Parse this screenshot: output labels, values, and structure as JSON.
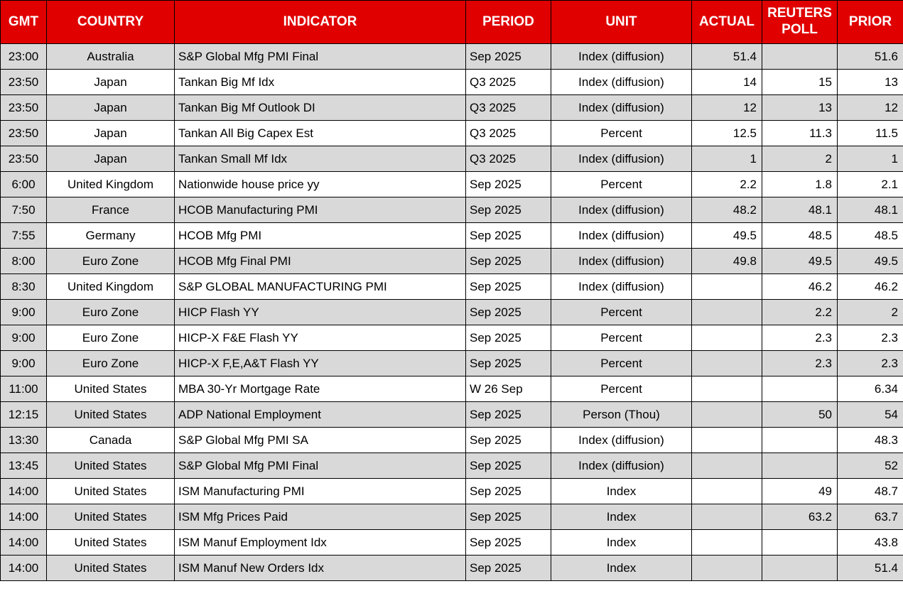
{
  "colors": {
    "header_bg": "#e00000",
    "header_text": "#ffffff",
    "stripe": "#d9d9d9",
    "row_white": "#ffffff",
    "border": "#000000"
  },
  "table": {
    "columns": [
      {
        "key": "gmt",
        "label": "GMT"
      },
      {
        "key": "country",
        "label": "COUNTRY"
      },
      {
        "key": "indicator",
        "label": "INDICATOR"
      },
      {
        "key": "period",
        "label": "PERIOD"
      },
      {
        "key": "unit",
        "label": "UNIT"
      },
      {
        "key": "actual",
        "label": "ACTUAL"
      },
      {
        "key": "poll",
        "label": "REUTERS POLL"
      },
      {
        "key": "prior",
        "label": "PRIOR"
      }
    ],
    "rows": [
      {
        "gmt": "23:00",
        "country": "Australia",
        "indicator": "S&P Global Mfg PMI Final",
        "period": "Sep 2025",
        "unit": "Index (diffusion)",
        "actual": "51.4",
        "poll": "",
        "prior": "51.6"
      },
      {
        "gmt": "23:50",
        "country": "Japan",
        "indicator": "Tankan Big Mf Idx",
        "period": "Q3 2025",
        "unit": "Index (diffusion)",
        "actual": "14",
        "poll": "15",
        "prior": "13"
      },
      {
        "gmt": "23:50",
        "country": "Japan",
        "indicator": "Tankan Big Mf Outlook DI",
        "period": "Q3 2025",
        "unit": "Index (diffusion)",
        "actual": "12",
        "poll": "13",
        "prior": "12"
      },
      {
        "gmt": "23:50",
        "country": "Japan",
        "indicator": "Tankan All Big Capex Est",
        "period": "Q3 2025",
        "unit": "Percent",
        "actual": "12.5",
        "poll": "11.3",
        "prior": "11.5"
      },
      {
        "gmt": "23:50",
        "country": "Japan",
        "indicator": "Tankan Small Mf Idx",
        "period": "Q3 2025",
        "unit": "Index (diffusion)",
        "actual": "1",
        "poll": "2",
        "prior": "1"
      },
      {
        "gmt": "6:00",
        "country": "United Kingdom",
        "indicator": "Nationwide house price yy",
        "period": "Sep 2025",
        "unit": "Percent",
        "actual": "2.2",
        "poll": "1.8",
        "prior": "2.1"
      },
      {
        "gmt": "7:50",
        "country": "France",
        "indicator": "HCOB Manufacturing PMI",
        "period": "Sep 2025",
        "unit": "Index (diffusion)",
        "actual": "48.2",
        "poll": "48.1",
        "prior": "48.1"
      },
      {
        "gmt": "7:55",
        "country": "Germany",
        "indicator": "HCOB Mfg PMI",
        "period": "Sep 2025",
        "unit": "Index (diffusion)",
        "actual": "49.5",
        "poll": "48.5",
        "prior": "48.5"
      },
      {
        "gmt": "8:00",
        "country": "Euro Zone",
        "indicator": "HCOB Mfg Final PMI",
        "period": "Sep 2025",
        "unit": "Index (diffusion)",
        "actual": "49.8",
        "poll": "49.5",
        "prior": "49.5"
      },
      {
        "gmt": "8:30",
        "country": "United Kingdom",
        "indicator": "S&P GLOBAL MANUFACTURING PMI",
        "period": "Sep 2025",
        "unit": "Index (diffusion)",
        "actual": "",
        "poll": "46.2",
        "prior": "46.2"
      },
      {
        "gmt": "9:00",
        "country": "Euro Zone",
        "indicator": "HICP Flash YY",
        "period": "Sep 2025",
        "unit": "Percent",
        "actual": "",
        "poll": "2.2",
        "prior": "2"
      },
      {
        "gmt": "9:00",
        "country": "Euro Zone",
        "indicator": "HICP-X F&E Flash YY",
        "period": "Sep 2025",
        "unit": "Percent",
        "actual": "",
        "poll": "2.3",
        "prior": "2.3"
      },
      {
        "gmt": "9:00",
        "country": "Euro Zone",
        "indicator": "HICP-X F,E,A&T Flash YY",
        "period": "Sep 2025",
        "unit": "Percent",
        "actual": "",
        "poll": "2.3",
        "prior": "2.3"
      },
      {
        "gmt": "11:00",
        "country": "United States",
        "indicator": "MBA 30-Yr Mortgage Rate",
        "period": "W 26 Sep",
        "unit": "Percent",
        "actual": "",
        "poll": "",
        "prior": "6.34"
      },
      {
        "gmt": "12:15",
        "country": "United States",
        "indicator": "ADP National Employment",
        "period": "Sep 2025",
        "unit": "Person (Thou)",
        "actual": "",
        "poll": "50",
        "prior": "54"
      },
      {
        "gmt": "13:30",
        "country": "Canada",
        "indicator": "S&P Global Mfg PMI SA",
        "period": "Sep 2025",
        "unit": "Index (diffusion)",
        "actual": "",
        "poll": "",
        "prior": "48.3"
      },
      {
        "gmt": "13:45",
        "country": "United States",
        "indicator": "S&P Global Mfg PMI Final",
        "period": "Sep 2025",
        "unit": "Index (diffusion)",
        "actual": "",
        "poll": "",
        "prior": "52"
      },
      {
        "gmt": "14:00",
        "country": "United States",
        "indicator": "ISM Manufacturing PMI",
        "period": "Sep 2025",
        "unit": "Index",
        "actual": "",
        "poll": "49",
        "prior": "48.7"
      },
      {
        "gmt": "14:00",
        "country": "United States",
        "indicator": "ISM Mfg Prices Paid",
        "period": "Sep 2025",
        "unit": "Index",
        "actual": "",
        "poll": "63.2",
        "prior": "63.7"
      },
      {
        "gmt": "14:00",
        "country": "United States",
        "indicator": "ISM Manuf Employment Idx",
        "period": "Sep 2025",
        "unit": "Index",
        "actual": "",
        "poll": "",
        "prior": "43.8"
      },
      {
        "gmt": "14:00",
        "country": "United States",
        "indicator": "ISM Manuf New Orders Idx",
        "period": "Sep 2025",
        "unit": "Index",
        "actual": "",
        "poll": "",
        "prior": "51.4"
      }
    ]
  }
}
